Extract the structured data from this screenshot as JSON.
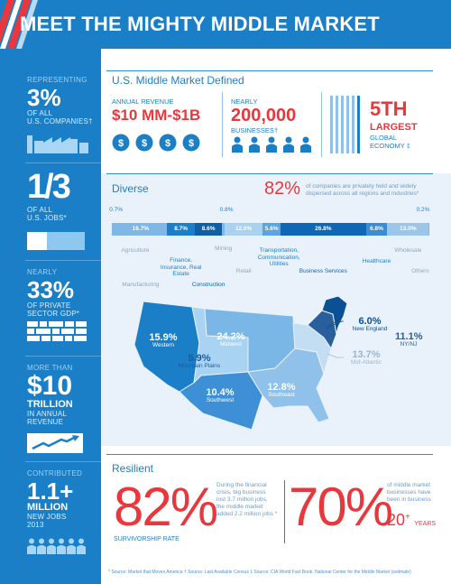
{
  "header": {
    "title": "MEET THE MIGHTY MIDDLE MARKET"
  },
  "colors": {
    "blue": "#1b7fc8",
    "red": "#e8383d",
    "light_blue": "#e9f2fa",
    "grey": "#8fa6bb"
  },
  "sidebar": {
    "companies": {
      "top": "REPRESENTING",
      "value": "3%",
      "line1": "OF ALL",
      "line2": "U.S. COMPANIES",
      "mark": "†",
      "icon": "factory-icon"
    },
    "jobs": {
      "value": "1/3",
      "line1": "OF ALL",
      "line2": "U.S. JOBS",
      "mark": "*",
      "icon": "bar-fraction-icon"
    },
    "gdp": {
      "top": "NEARLY",
      "value": "33%",
      "line1": "OF PRIVATE",
      "line2": "SECTOR GDP",
      "mark": "*",
      "icon": "building-grid-icon"
    },
    "revenue": {
      "top": "MORE THAN",
      "value": "$10",
      "line1": "TRILLION",
      "line2": "IN ANNUAL",
      "line3": "REVENUE",
      "icon": "growth-arrow-icon"
    },
    "new_jobs": {
      "top": "CONTRIBUTED",
      "value": "1.1+",
      "line1": "MILLION",
      "line2": "NEW JOBS",
      "line3": "2013",
      "icon": "people-icon"
    }
  },
  "defined": {
    "title": "U.S. Middle Market Defined",
    "revenue": {
      "label": "ANNUAL REVENUE",
      "value_a": "$10 MM",
      "dash": "-",
      "value_b": "$1B",
      "icon": "dollar-coin-icon"
    },
    "businesses": {
      "label": "NEARLY",
      "value": "200,000",
      "sub": "BUSINESSES",
      "mark": "†",
      "icon": "people-icon"
    },
    "economy": {
      "value": "5TH",
      "line1": "LARGEST",
      "line2": "GLOBAL",
      "line3": "ECONOMY",
      "mark": "‡",
      "icon": "columns-icon"
    }
  },
  "diverse": {
    "title": "Diverse",
    "pct": "82%",
    "desc1": "of companies are privately held and widely",
    "desc2": "dispersed across all regions and industries",
    "mark": "*"
  },
  "chart_data": {
    "type": "bar",
    "categories": [
      "Agriculture",
      "Manufacturing",
      "Finance, Insurance, Real Estate",
      "Construction",
      "Mining",
      "Retail",
      "Transportation, Communication, Utilities",
      "Business Services",
      "Healthcare",
      "Wholesale",
      "Others"
    ],
    "values": [
      0.7,
      16.7,
      8.7,
      8.6,
      0.8,
      12.0,
      5.6,
      26.8,
      6.8,
      13.0,
      0.2
    ],
    "value_labels": [
      "0.7%",
      "16.7%",
      "8.7%",
      "8.6%",
      "0.8%",
      "12.0%",
      "5.6%",
      "26.8%",
      "6.8%",
      "13.0%",
      "0.2%"
    ],
    "colors": [
      "#7fb8e6",
      "#7fb8e6",
      "#1b7fc8",
      "#0d5fa6",
      "#7fb8e6",
      "#a9d1f0",
      "#5aa5e0",
      "#0f66b3",
      "#3a8dd4",
      "#9bc6ea",
      "#7fb8e6"
    ],
    "label_colors": [
      "#8fa6bb",
      "#8fa6bb",
      "#1b7fc8",
      "#0d5fa6",
      "#8fa6bb",
      "#8fa6bb",
      "#1b7fc8",
      "#0f66b3",
      "#1b7fc8",
      "#8fa6bb",
      "#8fa6bb"
    ]
  },
  "map": {
    "regions": [
      {
        "id": "western",
        "pct": "15.9%",
        "name": "Western",
        "color": "#1b7fc8"
      },
      {
        "id": "midwest",
        "pct": "24.2%",
        "name": "Midwest",
        "color": "#7bb7e6"
      },
      {
        "id": "mountain",
        "pct": "5.9%",
        "name": "Mountain Plains",
        "color": "#a9d3f2"
      },
      {
        "id": "southwest",
        "pct": "10.4%",
        "name": "Southwest",
        "color": "#3d90d6"
      },
      {
        "id": "southeast",
        "pct": "12.8%",
        "name": "Southeast",
        "color": "#8fc1ea"
      },
      {
        "id": "newengland",
        "pct": "6.0%",
        "name": "New England",
        "color": "#0b4f94"
      },
      {
        "id": "nynj",
        "pct": "11.1%",
        "name": "NY/NJ",
        "color": "#2a5f9e"
      },
      {
        "id": "midatlantic",
        "pct": "13.7%",
        "name": "Mid-Atlantic",
        "color": "#c3ddf2"
      }
    ]
  },
  "resilient": {
    "title": "Resilient",
    "survivorship": {
      "value": "82%",
      "label": "SURVIVORSHIP RATE"
    },
    "crisis": {
      "l1": "During the financial",
      "l2": "crisis, big business",
      "l3": "lost 3.7 million jobs,",
      "l4": "the middle market",
      "l5": "added 2.2 million jobs",
      "mark": "*"
    },
    "business": {
      "value": "70%",
      "l1": "of middle market",
      "l2": "businesses have",
      "l3": "been in business",
      "years": "20",
      "plus": "+",
      "years_label": "YEARS"
    }
  },
  "footnote": "* Source: Market that Moves America    † Source: Last Available Census    ‡ Source: CIA World Fact Book, National Center for the Middle Market (estimate)"
}
